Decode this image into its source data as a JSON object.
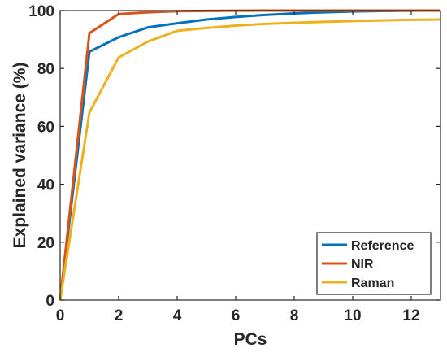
{
  "chart_data": {
    "type": "line",
    "title": "",
    "xlabel": "PCs",
    "ylabel": "Explained variance (%)",
    "xlim": [
      0,
      13
    ],
    "ylim": [
      0,
      100
    ],
    "xticks": [
      0,
      2,
      4,
      6,
      8,
      10,
      12
    ],
    "yticks": [
      0,
      20,
      40,
      60,
      80,
      100
    ],
    "x": [
      0,
      1,
      2,
      3,
      4,
      5,
      6,
      7,
      8,
      9,
      10,
      11,
      12,
      13
    ],
    "grid": false,
    "legend_position": "bottom-right",
    "series": [
      {
        "name": "Reference",
        "color": "#0072BD",
        "values": [
          0,
          85.8,
          90.8,
          94.2,
          95.6,
          96.9,
          97.8,
          98.5,
          99.0,
          99.4,
          99.7,
          99.85,
          99.95,
          100
        ]
      },
      {
        "name": "NIR",
        "color": "#D95319",
        "values": [
          0,
          92.2,
          98.8,
          99.4,
          99.8,
          99.9,
          99.95,
          100,
          100,
          100,
          100,
          100,
          100,
          100
        ]
      },
      {
        "name": "Raman",
        "color": "#EDB120",
        "values": [
          0,
          64.8,
          83.8,
          89.3,
          93.0,
          94.0,
          94.8,
          95.4,
          95.8,
          96.1,
          96.4,
          96.6,
          96.8,
          96.9
        ]
      }
    ]
  }
}
